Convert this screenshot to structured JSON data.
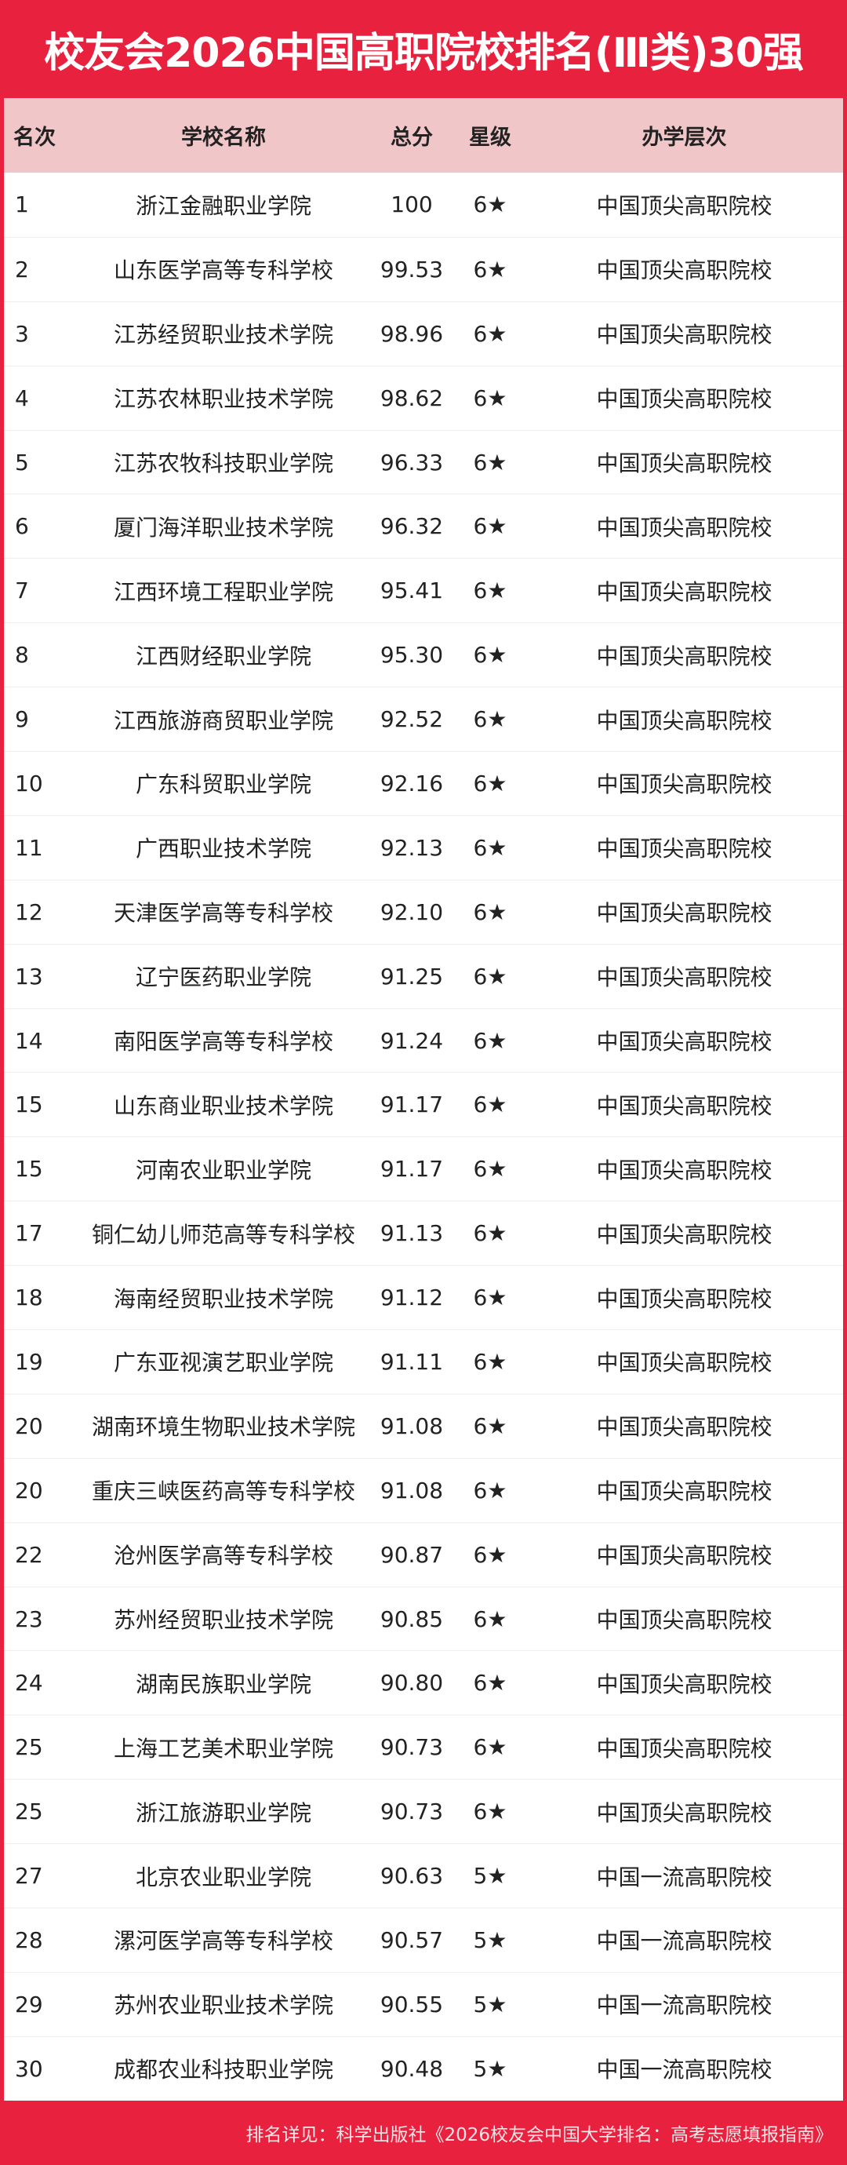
{
  "title": "校友会2026中国高职院校排名(Ⅲ类)30强",
  "colors": {
    "brand_red": "#e8213f",
    "header_bg": "#f0c6c8"
  },
  "columns": [
    "名次",
    "学校名称",
    "总分",
    "星级",
    "办学层次"
  ],
  "rows": [
    [
      "1",
      "浙江金融职业学院",
      "100",
      "6★",
      "中国顶尖高职院校"
    ],
    [
      "2",
      "山东医学高等专科学校",
      "99.53",
      "6★",
      "中国顶尖高职院校"
    ],
    [
      "3",
      "江苏经贸职业技术学院",
      "98.96",
      "6★",
      "中国顶尖高职院校"
    ],
    [
      "4",
      "江苏农林职业技术学院",
      "98.62",
      "6★",
      "中国顶尖高职院校"
    ],
    [
      "5",
      "江苏农牧科技职业学院",
      "96.33",
      "6★",
      "中国顶尖高职院校"
    ],
    [
      "6",
      "厦门海洋职业技术学院",
      "96.32",
      "6★",
      "中国顶尖高职院校"
    ],
    [
      "7",
      "江西环境工程职业学院",
      "95.41",
      "6★",
      "中国顶尖高职院校"
    ],
    [
      "8",
      "江西财经职业学院",
      "95.30",
      "6★",
      "中国顶尖高职院校"
    ],
    [
      "9",
      "江西旅游商贸职业学院",
      "92.52",
      "6★",
      "中国顶尖高职院校"
    ],
    [
      "10",
      "广东科贸职业学院",
      "92.16",
      "6★",
      "中国顶尖高职院校"
    ],
    [
      "11",
      "广西职业技术学院",
      "92.13",
      "6★",
      "中国顶尖高职院校"
    ],
    [
      "12",
      "天津医学高等专科学校",
      "92.10",
      "6★",
      "中国顶尖高职院校"
    ],
    [
      "13",
      "辽宁医药职业学院",
      "91.25",
      "6★",
      "中国顶尖高职院校"
    ],
    [
      "14",
      "南阳医学高等专科学校",
      "91.24",
      "6★",
      "中国顶尖高职院校"
    ],
    [
      "15",
      "山东商业职业技术学院",
      "91.17",
      "6★",
      "中国顶尖高职院校"
    ],
    [
      "15",
      "河南农业职业学院",
      "91.17",
      "6★",
      "中国顶尖高职院校"
    ],
    [
      "17",
      "铜仁幼儿师范高等专科学校",
      "91.13",
      "6★",
      "中国顶尖高职院校"
    ],
    [
      "18",
      "海南经贸职业技术学院",
      "91.12",
      "6★",
      "中国顶尖高职院校"
    ],
    [
      "19",
      "广东亚视演艺职业学院",
      "91.11",
      "6★",
      "中国顶尖高职院校"
    ],
    [
      "20",
      "湖南环境生物职业技术学院",
      "91.08",
      "6★",
      "中国顶尖高职院校"
    ],
    [
      "20",
      "重庆三峡医药高等专科学校",
      "91.08",
      "6★",
      "中国顶尖高职院校"
    ],
    [
      "22",
      "沧州医学高等专科学校",
      "90.87",
      "6★",
      "中国顶尖高职院校"
    ],
    [
      "23",
      "苏州经贸职业技术学院",
      "90.85",
      "6★",
      "中国顶尖高职院校"
    ],
    [
      "24",
      "湖南民族职业学院",
      "90.80",
      "6★",
      "中国顶尖高职院校"
    ],
    [
      "25",
      "上海工艺美术职业学院",
      "90.73",
      "6★",
      "中国顶尖高职院校"
    ],
    [
      "25",
      "浙江旅游职业学院",
      "90.73",
      "6★",
      "中国顶尖高职院校"
    ],
    [
      "27",
      "北京农业职业学院",
      "90.63",
      "5★",
      "中国一流高职院校"
    ],
    [
      "28",
      "漯河医学高等专科学校",
      "90.57",
      "5★",
      "中国一流高职院校"
    ],
    [
      "29",
      "苏州农业职业技术学院",
      "90.55",
      "5★",
      "中国一流高职院校"
    ],
    [
      "30",
      "成都农业科技职业学院",
      "90.48",
      "5★",
      "中国一流高职院校"
    ]
  ],
  "footer": "排名详见：科学出版社《2026校友会中国大学排名：高考志愿填报指南》"
}
